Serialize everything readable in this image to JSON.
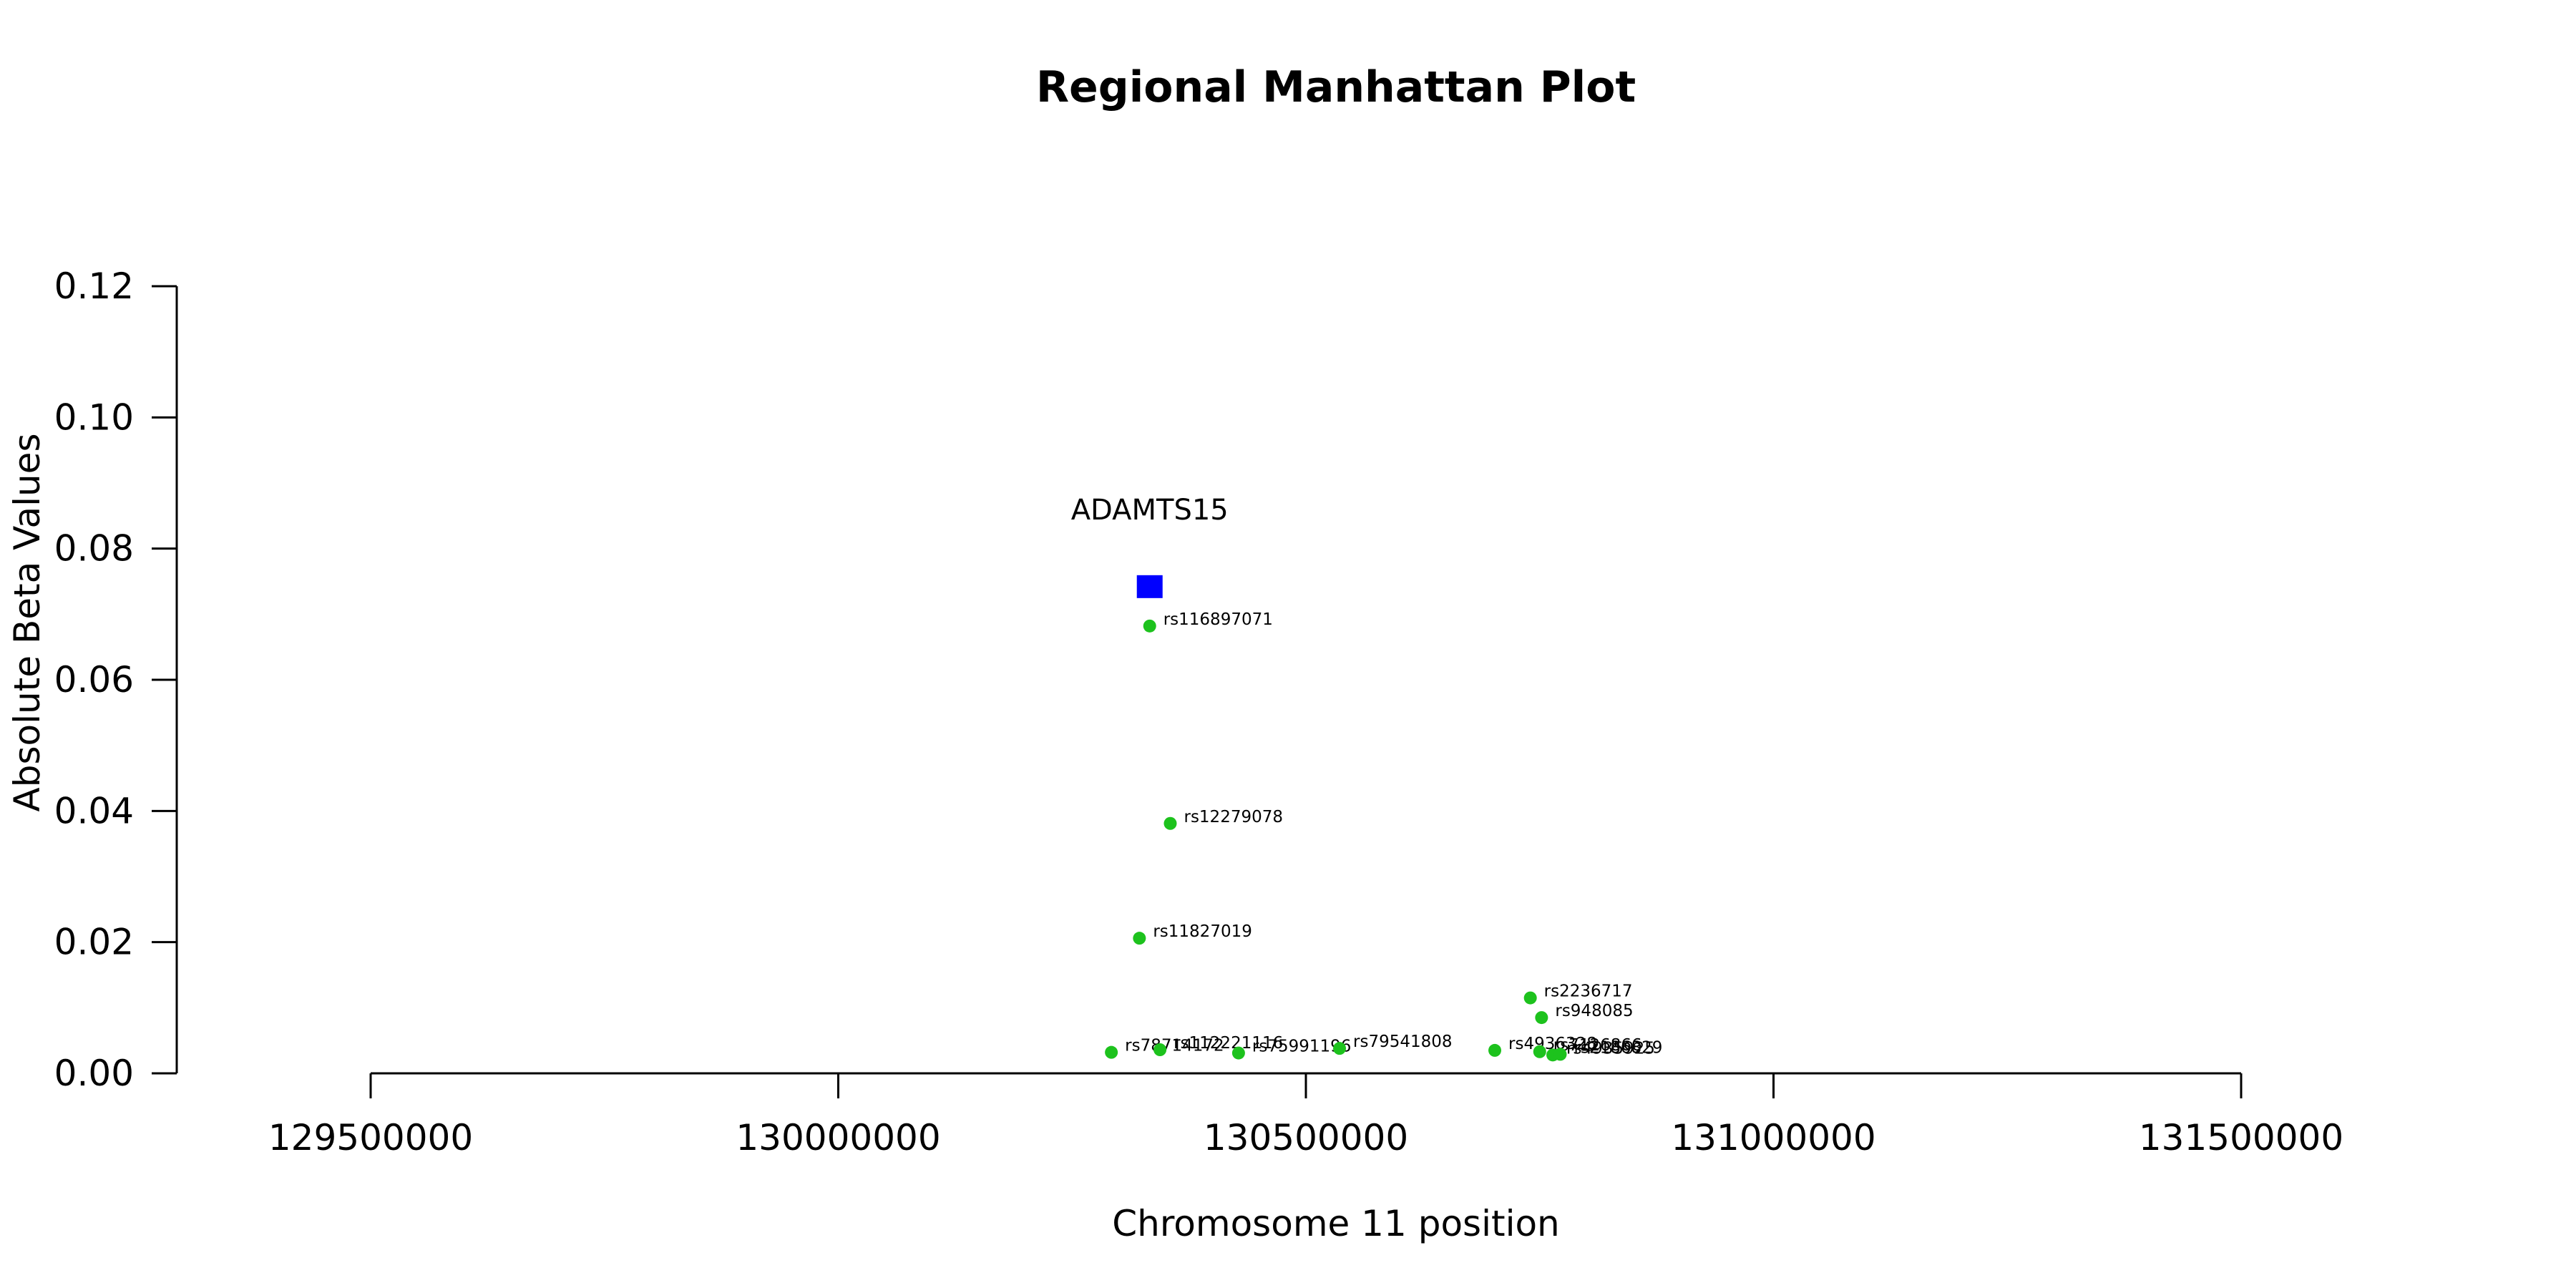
{
  "chart_data": {
    "type": "scatter",
    "title": "Regional Manhattan Plot",
    "xlabel": "Chromosome 11 position",
    "ylabel": "Absolute Beta Values",
    "xlim": [
      129300000,
      131700000
    ],
    "ylim": [
      0,
      0.12
    ],
    "x_ticks": [
      129500000,
      130000000,
      130500000,
      131000000,
      131500000
    ],
    "x_tick_labels": [
      "129500000",
      "130000000",
      "130500000",
      "131000000",
      "131500000"
    ],
    "y_ticks": [
      0.0,
      0.02,
      0.04,
      0.06,
      0.08,
      0.1,
      0.12
    ],
    "y_tick_labels": [
      "0.00",
      "0.02",
      "0.04",
      "0.06",
      "0.08",
      "0.10",
      "0.12"
    ],
    "grid": false,
    "snp_color": "#1dc21d",
    "gene_color": "#0000ff",
    "gene": {
      "name": "ADAMTS15",
      "x": 130333000,
      "y": 0.0742
    },
    "snps": [
      {
        "id": "rs116897071",
        "x": 130333000,
        "y": 0.0682
      },
      {
        "id": "rs12279078",
        "x": 130355000,
        "y": 0.0381
      },
      {
        "id": "rs11827019",
        "x": 130322000,
        "y": 0.0206
      },
      {
        "id": "rs2236717",
        "x": 130740000,
        "y": 0.0115
      },
      {
        "id": "rs948085",
        "x": 130752000,
        "y": 0.0085
      },
      {
        "id": "rs78714172",
        "x": 130292000,
        "y": 0.0032
      },
      {
        "id": "rs112221116",
        "x": 130344000,
        "y": 0.0036
      },
      {
        "id": "rs75991196",
        "x": 130428000,
        "y": 0.0031
      },
      {
        "id": "rs79541808",
        "x": 130536000,
        "y": 0.0038
      },
      {
        "id": "rs4936328",
        "x": 130702000,
        "y": 0.0035
      },
      {
        "id": "rs7126866",
        "x": 130750000,
        "y": 0.0033
      },
      {
        "id": "rs4935925",
        "x": 130764000,
        "y": 0.0028
      },
      {
        "id": "rs2186829",
        "x": 130772000,
        "y": 0.0029
      }
    ]
  }
}
